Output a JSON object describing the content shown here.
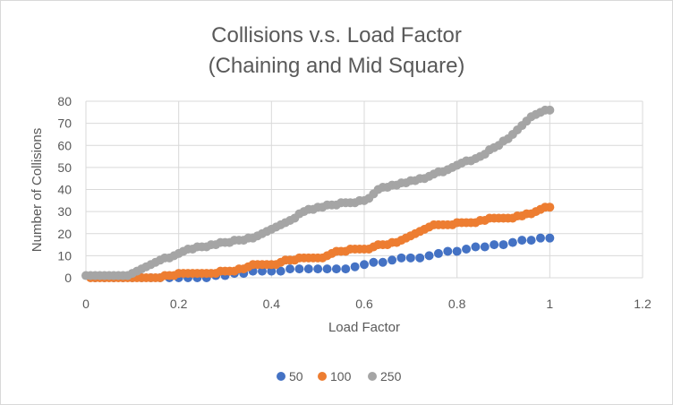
{
  "chart_data": {
    "type": "scatter",
    "title": [
      "Collisions v.s. Load Factor",
      "(Chaining and Mid Square)"
    ],
    "xlabel": "Load Factor",
    "ylabel": "Number of Collisions",
    "xlim": [
      0,
      1.2
    ],
    "ylim": [
      0,
      80
    ],
    "x_ticks": [
      0,
      0.2,
      0.4,
      0.6,
      0.8,
      1,
      1.2
    ],
    "y_ticks": [
      0,
      10,
      20,
      30,
      40,
      50,
      60,
      70,
      80
    ],
    "grid": true,
    "legend_position": "bottom",
    "series": [
      {
        "name": "50",
        "color": "#4472c4",
        "x": [
          0.02,
          0.04,
          0.06,
          0.08,
          0.1,
          0.12,
          0.14,
          0.16,
          0.18,
          0.2,
          0.22,
          0.24,
          0.26,
          0.28,
          0.3,
          0.32,
          0.34,
          0.36,
          0.38,
          0.4,
          0.42,
          0.44,
          0.46,
          0.48,
          0.5,
          0.52,
          0.54,
          0.56,
          0.58,
          0.6,
          0.62,
          0.64,
          0.66,
          0.68,
          0.7,
          0.72,
          0.74,
          0.76,
          0.78,
          0.8,
          0.82,
          0.84,
          0.86,
          0.88,
          0.9,
          0.92,
          0.94,
          0.96,
          0.98,
          1
        ],
        "y": [
          0,
          0,
          0,
          0,
          0,
          0,
          0,
          0,
          0,
          0,
          0,
          0,
          0,
          1,
          1,
          2,
          2,
          3,
          3,
          3,
          3,
          4,
          4,
          4,
          4,
          4,
          4,
          4,
          5,
          6,
          7,
          7,
          8,
          9,
          9,
          9,
          10,
          11,
          12,
          12,
          13,
          14,
          14,
          15,
          15,
          16,
          17,
          17,
          18,
          18
        ]
      },
      {
        "name": "100",
        "color": "#ed7d31",
        "x": [
          0.01,
          0.02,
          0.03,
          0.04,
          0.05,
          0.06,
          0.07,
          0.08,
          0.09,
          0.1,
          0.11,
          0.12,
          0.13,
          0.14,
          0.15,
          0.16,
          0.17,
          0.18,
          0.19,
          0.2,
          0.21,
          0.22,
          0.23,
          0.24,
          0.25,
          0.26,
          0.27,
          0.28,
          0.29,
          0.3,
          0.31,
          0.32,
          0.33,
          0.34,
          0.35,
          0.36,
          0.37,
          0.38,
          0.39,
          0.4,
          0.41,
          0.42,
          0.43,
          0.44,
          0.45,
          0.46,
          0.47,
          0.48,
          0.49,
          0.5,
          0.51,
          0.52,
          0.53,
          0.54,
          0.55,
          0.56,
          0.57,
          0.58,
          0.59,
          0.6,
          0.61,
          0.62,
          0.63,
          0.64,
          0.65,
          0.66,
          0.67,
          0.68,
          0.69,
          0.7,
          0.71,
          0.72,
          0.73,
          0.74,
          0.75,
          0.76,
          0.77,
          0.78,
          0.79,
          0.8,
          0.81,
          0.82,
          0.83,
          0.84,
          0.85,
          0.86,
          0.87,
          0.88,
          0.89,
          0.9,
          0.91,
          0.92,
          0.93,
          0.94,
          0.95,
          0.96,
          0.97,
          0.98,
          0.99,
          1
        ],
        "y": [
          0,
          0,
          0,
          0,
          0,
          0,
          0,
          0,
          0,
          0,
          0,
          0,
          0,
          0,
          0,
          0,
          1,
          1,
          1,
          2,
          2,
          2,
          2,
          2,
          2,
          2,
          2,
          2,
          3,
          3,
          3,
          3,
          4,
          4,
          5,
          6,
          6,
          6,
          6,
          6,
          6,
          7,
          8,
          8,
          8,
          9,
          9,
          9,
          9,
          9,
          9,
          10,
          11,
          12,
          12,
          12,
          13,
          13,
          13,
          13,
          13,
          14,
          15,
          15,
          15,
          16,
          16,
          17,
          18,
          19,
          20,
          21,
          22,
          23,
          24,
          24,
          24,
          24,
          24,
          25,
          25,
          25,
          25,
          25,
          26,
          26,
          27,
          27,
          27,
          27,
          27,
          27,
          28,
          28,
          29,
          29,
          30,
          31,
          32,
          32
        ]
      },
      {
        "name": "250",
        "color": "#a5a5a5",
        "x": [
          0,
          0.01,
          0.02,
          0.03,
          0.04,
          0.05,
          0.06,
          0.07,
          0.08,
          0.09,
          0.1,
          0.11,
          0.12,
          0.13,
          0.14,
          0.15,
          0.16,
          0.17,
          0.18,
          0.19,
          0.2,
          0.21,
          0.22,
          0.23,
          0.24,
          0.25,
          0.26,
          0.27,
          0.28,
          0.29,
          0.3,
          0.31,
          0.32,
          0.33,
          0.34,
          0.35,
          0.36,
          0.37,
          0.38,
          0.39,
          0.4,
          0.41,
          0.42,
          0.43,
          0.44,
          0.45,
          0.46,
          0.47,
          0.48,
          0.49,
          0.5,
          0.51,
          0.52,
          0.53,
          0.54,
          0.55,
          0.56,
          0.57,
          0.58,
          0.59,
          0.6,
          0.61,
          0.62,
          0.63,
          0.64,
          0.65,
          0.66,
          0.67,
          0.68,
          0.69,
          0.7,
          0.71,
          0.72,
          0.73,
          0.74,
          0.75,
          0.76,
          0.77,
          0.78,
          0.79,
          0.8,
          0.81,
          0.82,
          0.83,
          0.84,
          0.85,
          0.86,
          0.87,
          0.88,
          0.89,
          0.9,
          0.91,
          0.92,
          0.93,
          0.94,
          0.95,
          0.96,
          0.97,
          0.98,
          0.99,
          1
        ],
        "y": [
          1,
          1,
          1,
          1,
          1,
          1,
          1,
          1,
          1,
          1,
          2,
          3,
          4,
          5,
          6,
          7,
          8,
          9,
          9,
          10,
          11,
          12,
          13,
          13,
          14,
          14,
          14,
          15,
          15,
          16,
          16,
          16,
          17,
          17,
          17,
          18,
          18,
          19,
          20,
          21,
          22,
          23,
          24,
          25,
          26,
          27,
          29,
          30,
          31,
          31,
          32,
          32,
          33,
          33,
          33,
          34,
          34,
          34,
          34,
          35,
          35,
          36,
          38,
          40,
          41,
          41,
          42,
          42,
          43,
          43,
          44,
          44,
          45,
          45,
          46,
          47,
          48,
          48,
          49,
          50,
          51,
          52,
          53,
          53,
          54,
          55,
          56,
          58,
          59,
          60,
          62,
          63,
          65,
          67,
          69,
          71,
          73,
          74,
          75,
          76,
          76
        ]
      }
    ]
  }
}
